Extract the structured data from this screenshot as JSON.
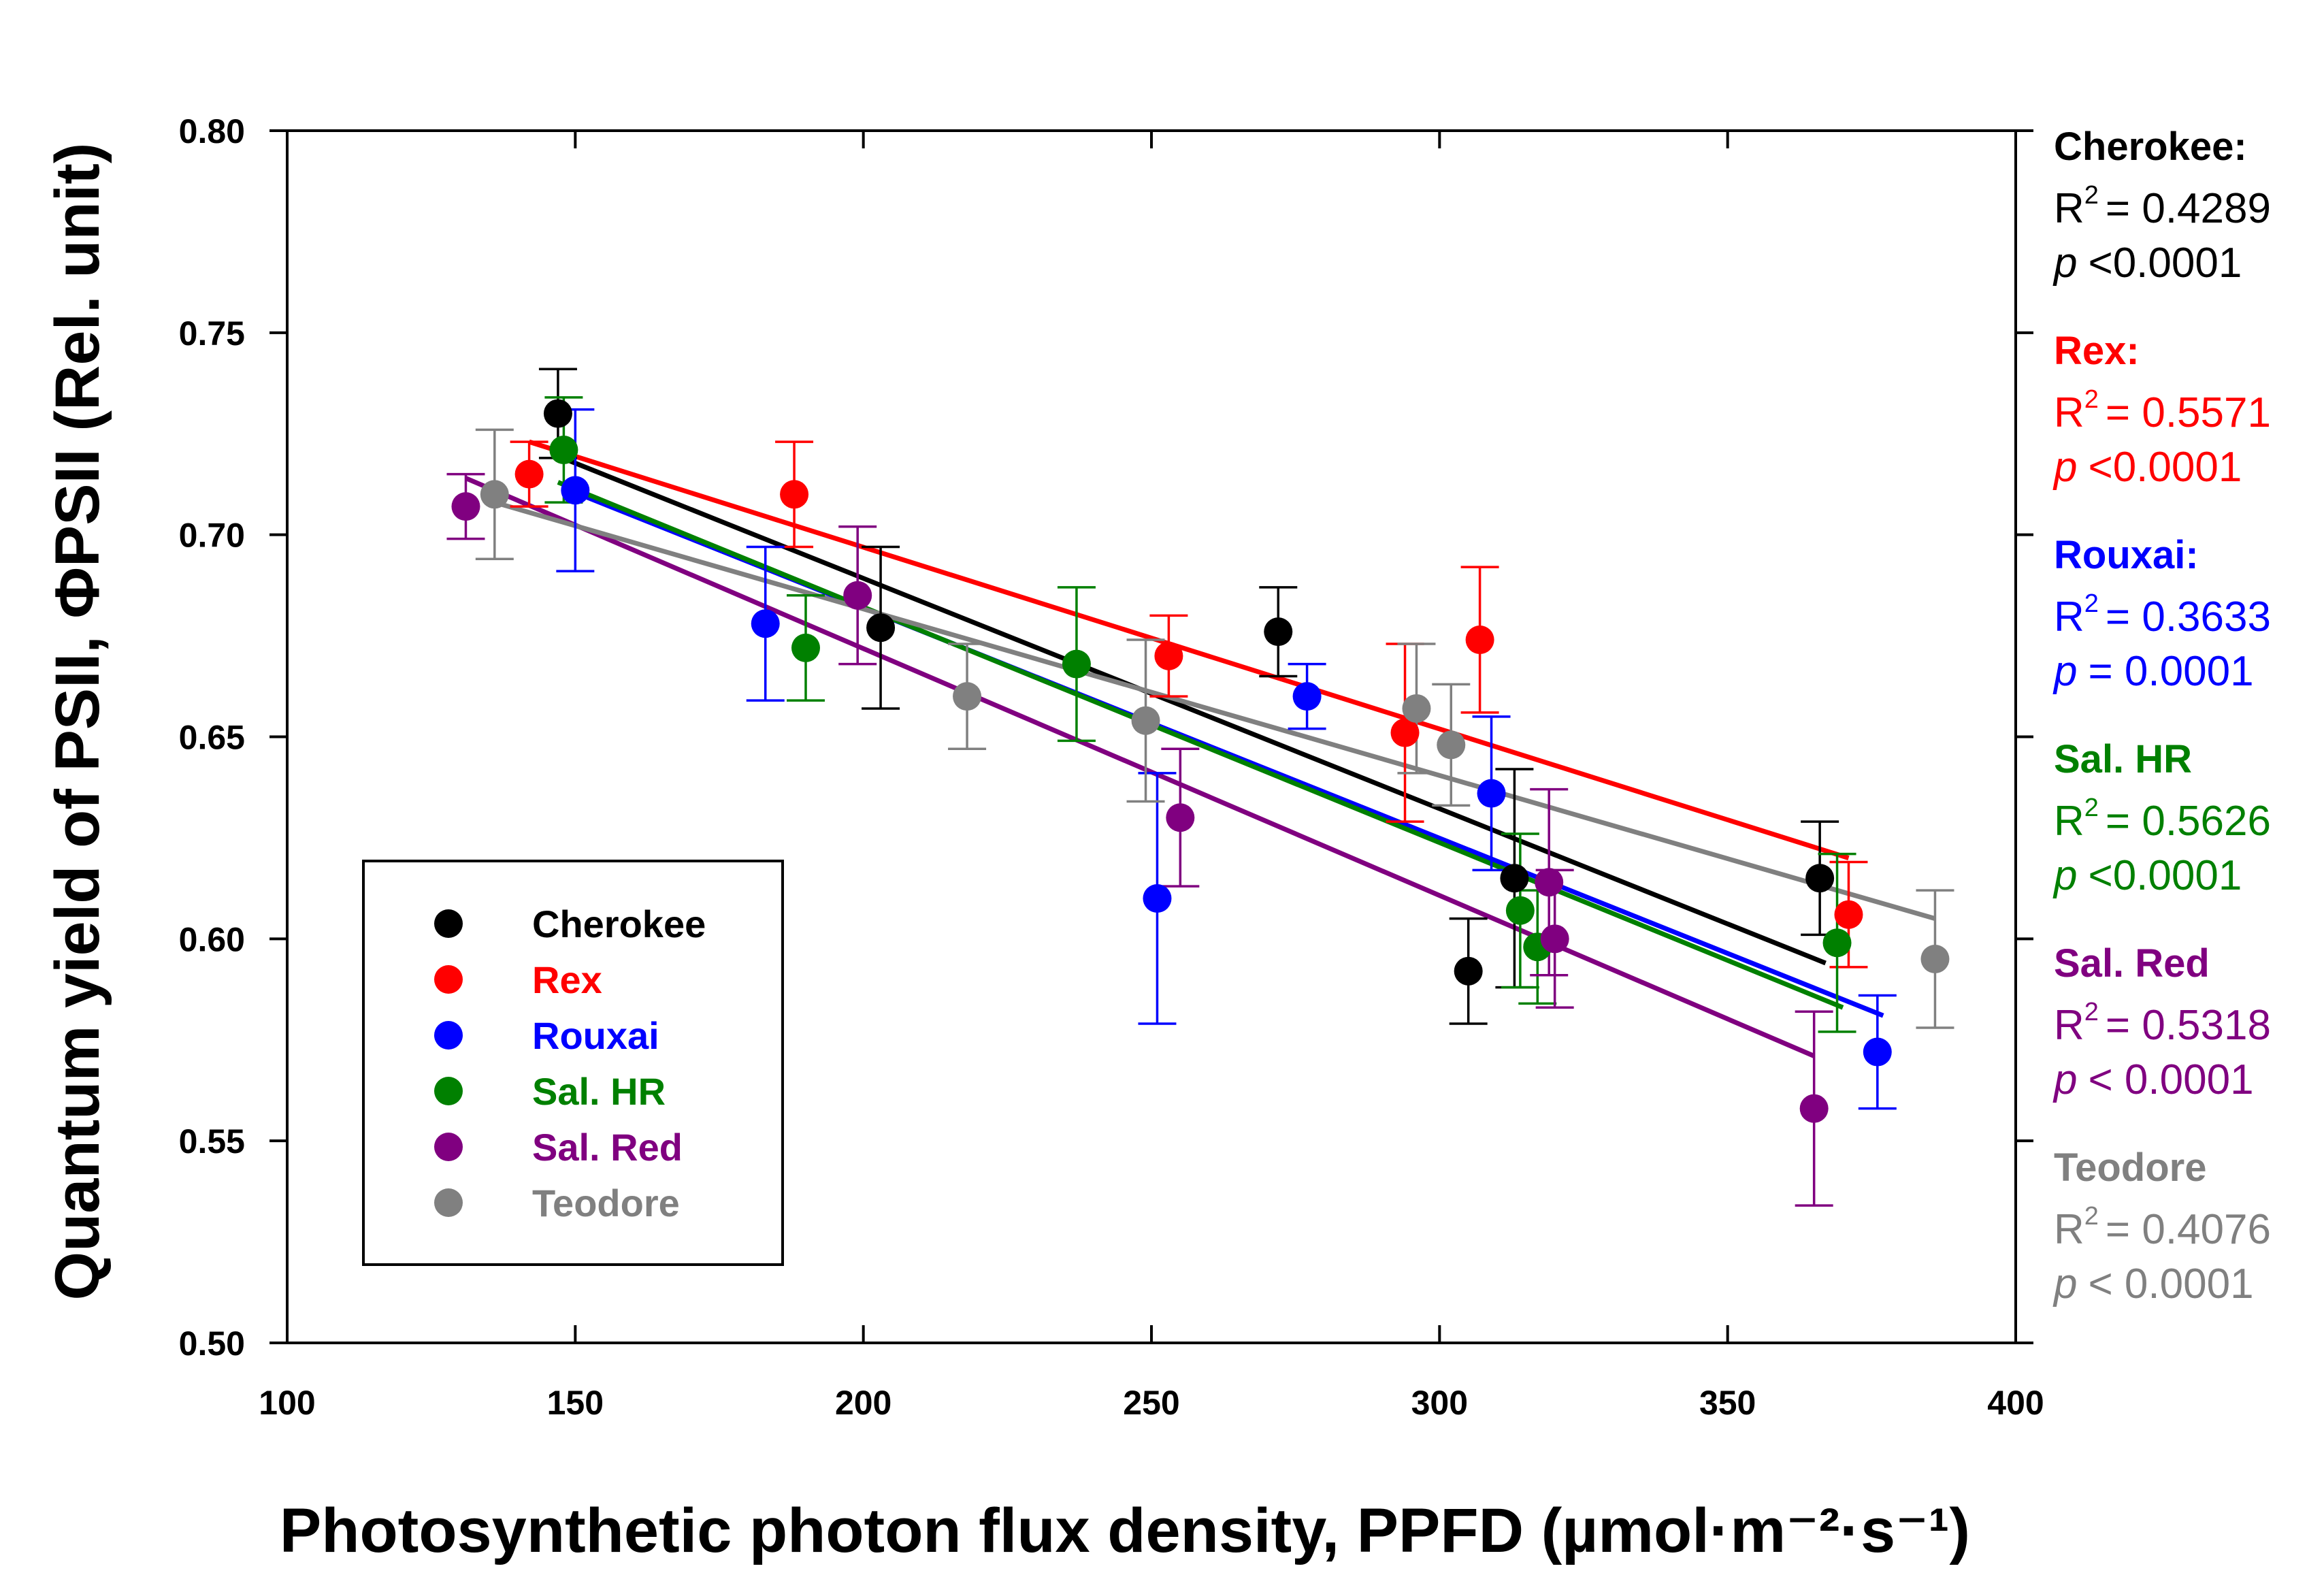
{
  "chart_data": {
    "type": "scatter",
    "xlabel": "Photosynthetic photon flux density, PPFD (µmol·m⁻²·s⁻¹)",
    "ylabel": "Quantum yield of PSII, ΦPSII (Rel. unit)",
    "xlim": [
      100,
      400
    ],
    "ylim": [
      0.5,
      0.8
    ],
    "x_ticks": [
      100,
      150,
      200,
      250,
      300,
      350,
      400
    ],
    "x_tick_labels": [
      "100",
      "150",
      "200",
      "250",
      "300",
      "350",
      "400"
    ],
    "y_ticks": [
      0.5,
      0.55,
      0.6,
      0.65,
      0.7,
      0.75,
      0.8
    ],
    "y_tick_labels": [
      "0.50",
      "0.55",
      "0.60",
      "0.65",
      "0.70",
      "0.75",
      "0.80"
    ],
    "grid": false,
    "legend_position": "bottom-left",
    "series": [
      {
        "name": "Cherokee",
        "color": "#000000",
        "points": [
          {
            "x": 147,
            "y": 0.73,
            "err": 0.011
          },
          {
            "x": 203,
            "y": 0.677,
            "err": 0.02
          },
          {
            "x": 272,
            "y": 0.676,
            "err": 0.011
          },
          {
            "x": 305,
            "y": 0.592,
            "err": 0.013
          },
          {
            "x": 313,
            "y": 0.615,
            "err": 0.027
          },
          {
            "x": 366,
            "y": 0.615,
            "err": 0.014
          }
        ],
        "fit": {
          "x": [
            146,
            367
          ],
          "y": [
            0.72,
            0.594
          ]
        },
        "stats": {
          "label": "Cherokee:",
          "r2_value": "= 0.4289",
          "p_symbol": "p",
          "p_text": "<0.0001"
        }
      },
      {
        "name": "Rex",
        "color": "#ff0000",
        "points": [
          {
            "x": 142,
            "y": 0.715,
            "err": 0.008
          },
          {
            "x": 188,
            "y": 0.71,
            "err": 0.013
          },
          {
            "x": 253,
            "y": 0.67,
            "err": 0.01
          },
          {
            "x": 294,
            "y": 0.651,
            "err": 0.022
          },
          {
            "x": 307,
            "y": 0.674,
            "err": 0.018
          },
          {
            "x": 371,
            "y": 0.606,
            "err": 0.013
          }
        ],
        "fit": {
          "x": [
            142,
            371
          ],
          "y": [
            0.723,
            0.62
          ]
        },
        "stats": {
          "label": "Rex:",
          "r2_value": "= 0.5571",
          "p_symbol": "p",
          "p_text": "<0.0001"
        }
      },
      {
        "name": "Rouxai",
        "color": "#0000ff",
        "points": [
          {
            "x": 150,
            "y": 0.711,
            "err": 0.02
          },
          {
            "x": 183,
            "y": 0.678,
            "err": 0.019
          },
          {
            "x": 251,
            "y": 0.61,
            "err": 0.031
          },
          {
            "x": 277,
            "y": 0.66,
            "err": 0.008
          },
          {
            "x": 309,
            "y": 0.636,
            "err": 0.019
          },
          {
            "x": 376,
            "y": 0.572,
            "err": 0.014
          }
        ],
        "fit": {
          "x": [
            149,
            377
          ],
          "y": [
            0.711,
            0.581
          ]
        },
        "stats": {
          "label": "Rouxai:",
          "r2_value": "= 0.3633",
          "p_symbol": "p",
          "p_text": "= 0.0001"
        }
      },
      {
        "name": "Sal. HR",
        "color": "#008000",
        "points": [
          {
            "x": 148,
            "y": 0.721,
            "err": 0.013
          },
          {
            "x": 190,
            "y": 0.672,
            "err": 0.013
          },
          {
            "x": 237,
            "y": 0.668,
            "err": 0.019
          },
          {
            "x": 314,
            "y": 0.607,
            "err": 0.019
          },
          {
            "x": 317,
            "y": 0.598,
            "err": 0.014
          },
          {
            "x": 369,
            "y": 0.599,
            "err": 0.022
          }
        ],
        "fit": {
          "x": [
            147,
            370
          ],
          "y": [
            0.713,
            0.583
          ]
        },
        "stats": {
          "label": "Sal. HR",
          "r2_value": "= 0.5626",
          "p_symbol": "p",
          "p_text": "<0.0001"
        }
      },
      {
        "name": "Sal. Red",
        "color": "#800080",
        "points": [
          {
            "x": 131,
            "y": 0.707,
            "err": 0.008
          },
          {
            "x": 199,
            "y": 0.685,
            "err": 0.017
          },
          {
            "x": 255,
            "y": 0.63,
            "err": 0.017
          },
          {
            "x": 319,
            "y": 0.614,
            "err": 0.023
          },
          {
            "x": 320,
            "y": 0.6,
            "err": 0.017
          },
          {
            "x": 365,
            "y": 0.558,
            "err": 0.024
          }
        ],
        "fit": {
          "x": [
            131,
            365
          ],
          "y": [
            0.714,
            0.571
          ]
        },
        "stats": {
          "label": "Sal. Red",
          "r2_value": "= 0.5318",
          "p_symbol": "p",
          "p_text": "< 0.0001"
        }
      },
      {
        "name": "Teodore",
        "color": "#808080",
        "points": [
          {
            "x": 136,
            "y": 0.71,
            "err": 0.016
          },
          {
            "x": 218,
            "y": 0.66,
            "err": 0.013
          },
          {
            "x": 249,
            "y": 0.654,
            "err": 0.02
          },
          {
            "x": 296,
            "y": 0.657,
            "err": 0.016
          },
          {
            "x": 302,
            "y": 0.648,
            "err": 0.015
          },
          {
            "x": 386,
            "y": 0.595,
            "err": 0.017
          }
        ],
        "fit": {
          "x": [
            136,
            386
          ],
          "y": [
            0.708,
            0.605
          ]
        },
        "stats": {
          "label": "Teodore",
          "r2_value": "= 0.4076",
          "p_symbol": "p",
          "p_text": "< 0.0001"
        }
      }
    ],
    "r2_symbol": "R",
    "r2_superscript": "2"
  }
}
